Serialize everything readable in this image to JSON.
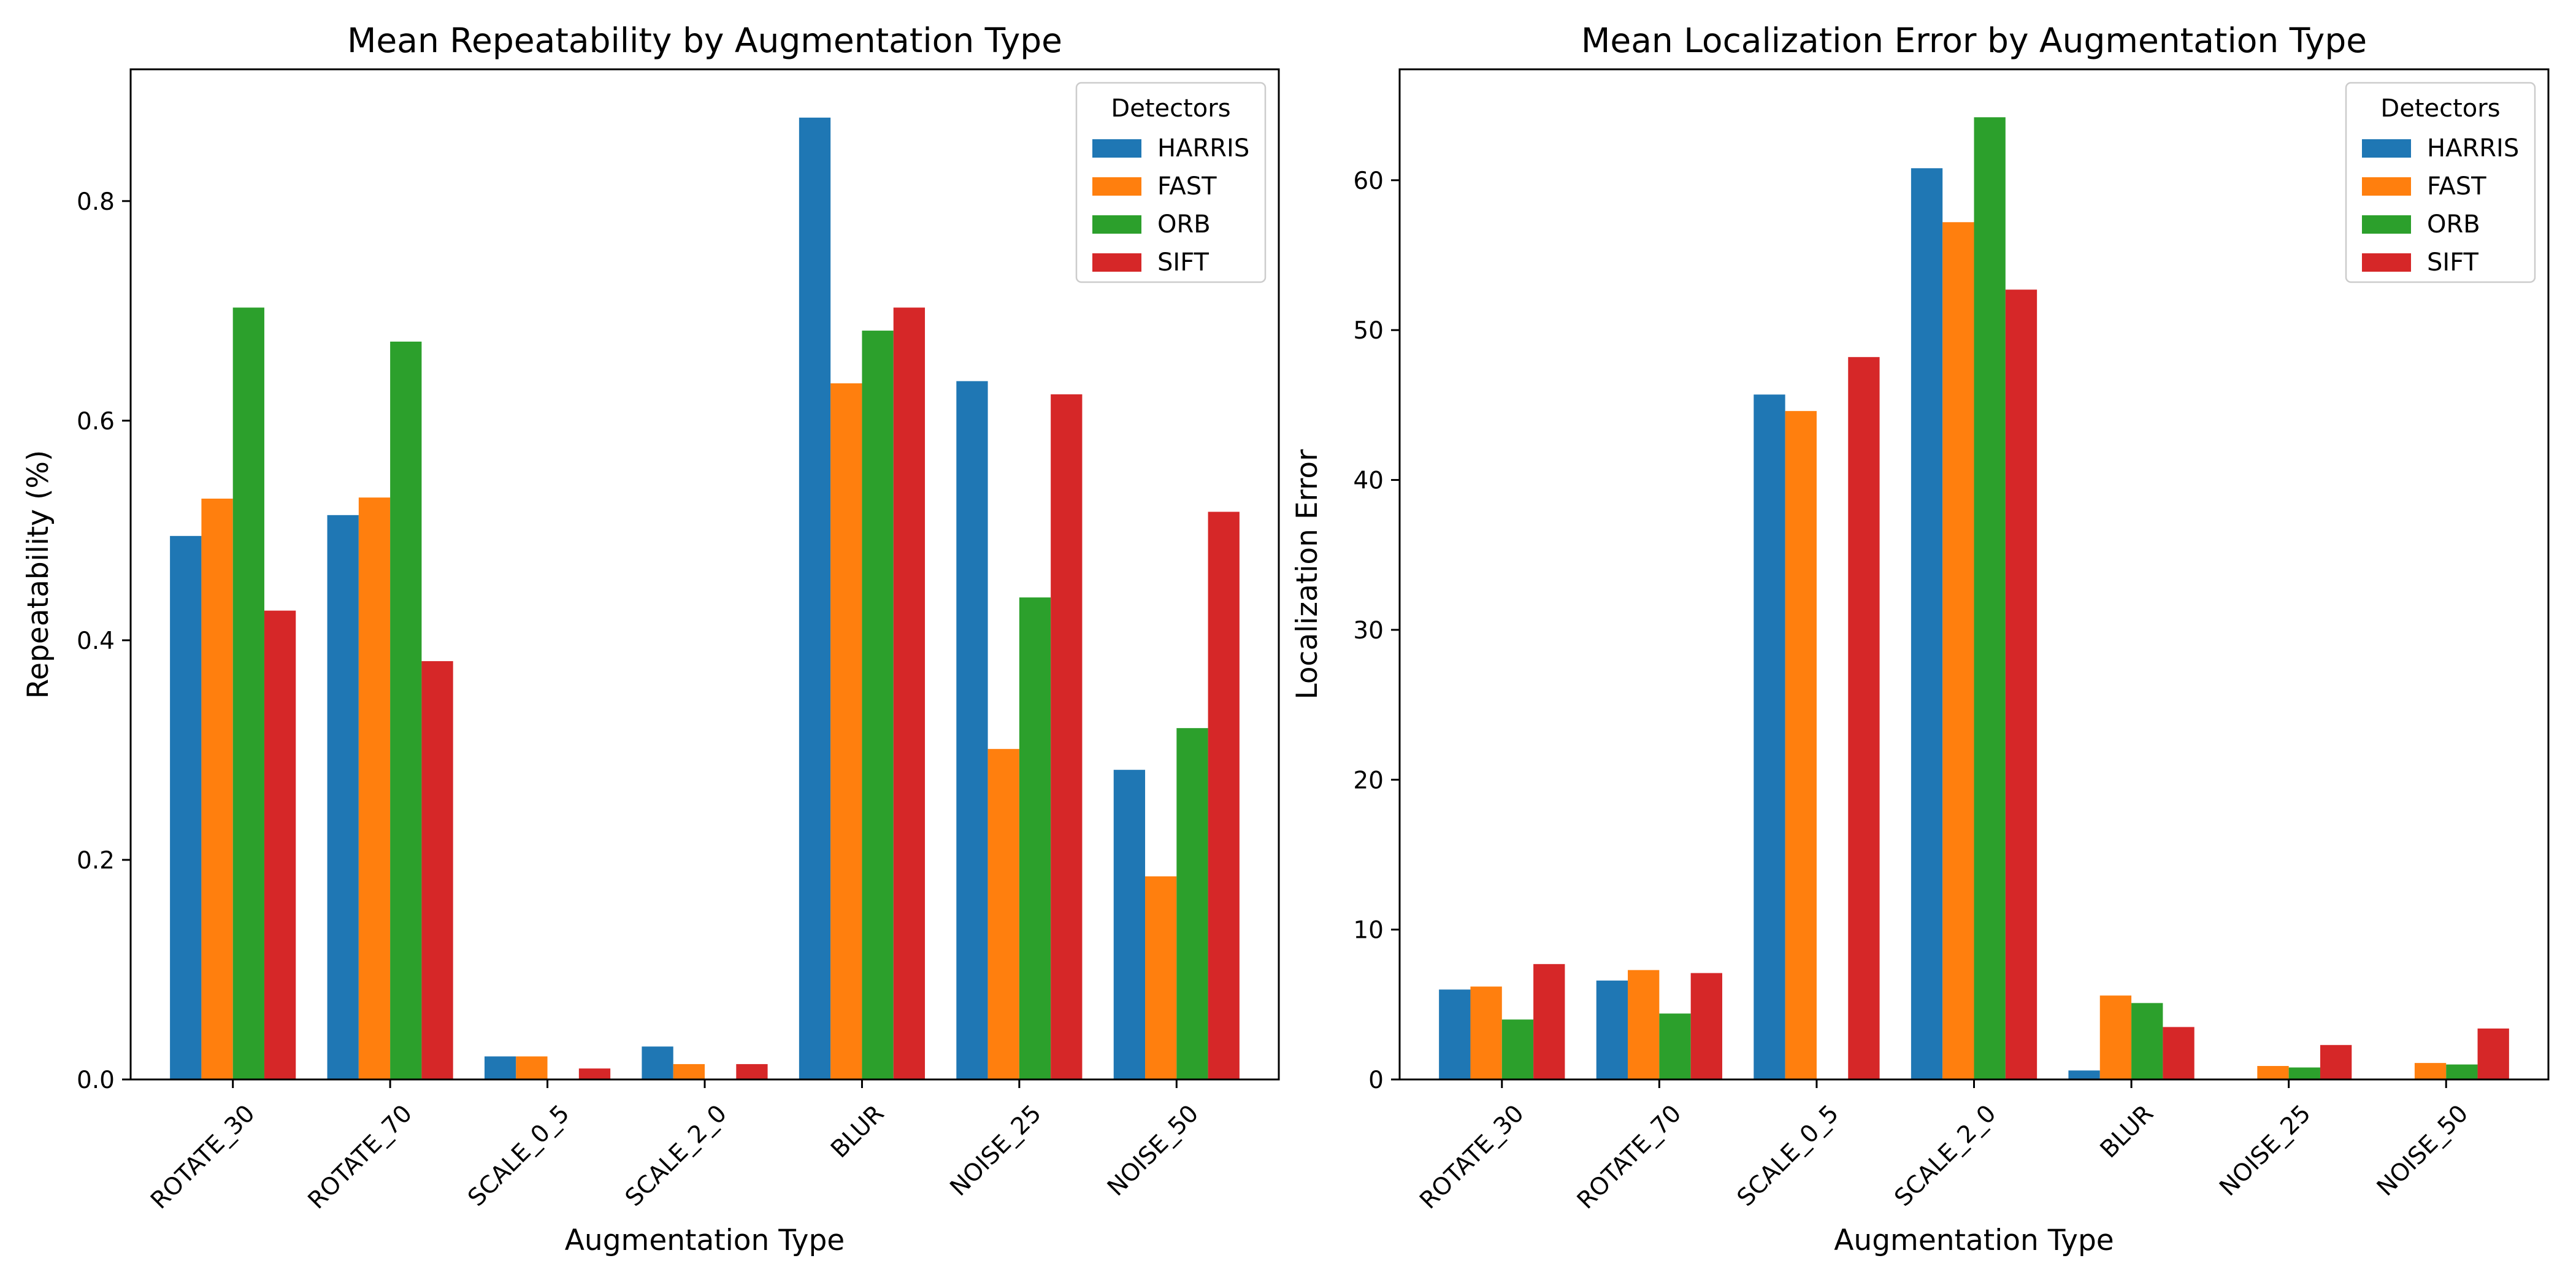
{
  "chart_data": [
    {
      "type": "bar",
      "title": "Mean Repeatability by Augmentation Type",
      "xlabel": "Augmentation Type",
      "ylabel": "Repeatability (%)",
      "ylim": [
        0,
        0.92
      ],
      "yticks": [
        0.0,
        0.2,
        0.4,
        0.6,
        0.8
      ],
      "ytick_labels": [
        "0.0",
        "0.2",
        "0.4",
        "0.6",
        "0.8"
      ],
      "grid": false,
      "legend": {
        "title": "Detectors",
        "placement": "top-right"
      },
      "categories": [
        "ROTATE_30",
        "ROTATE_70",
        "SCALE_0_5",
        "SCALE_2_0",
        "BLUR",
        "NOISE_25",
        "NOISE_50"
      ],
      "series": [
        {
          "name": "HARRIS",
          "color": "#1f77b4",
          "values": [
            0.495,
            0.514,
            0.021,
            0.03,
            0.876,
            0.636,
            0.282
          ]
        },
        {
          "name": "FAST",
          "color": "#ff7f0e",
          "values": [
            0.529,
            0.53,
            0.021,
            0.014,
            0.634,
            0.301,
            0.185
          ]
        },
        {
          "name": "ORB",
          "color": "#2ca02c",
          "values": [
            0.703,
            0.672,
            0.0,
            0.0,
            0.682,
            0.439,
            0.32
          ]
        },
        {
          "name": "SIFT",
          "color": "#d62728",
          "values": [
            0.427,
            0.381,
            0.01,
            0.014,
            0.703,
            0.624,
            0.517
          ]
        }
      ]
    },
    {
      "type": "bar",
      "title": "Mean Localization Error by Augmentation Type",
      "xlabel": "Augmentation Type",
      "ylabel": "Localization Error",
      "ylim": [
        0,
        67.4
      ],
      "yticks": [
        0,
        10,
        20,
        30,
        40,
        50,
        60
      ],
      "ytick_labels": [
        "0",
        "10",
        "20",
        "30",
        "40",
        "50",
        "60"
      ],
      "grid": false,
      "legend": {
        "title": "Detectors",
        "placement": "top-right"
      },
      "categories": [
        "ROTATE_30",
        "ROTATE_70",
        "SCALE_0_5",
        "SCALE_2_0",
        "BLUR",
        "NOISE_25",
        "NOISE_50"
      ],
      "series": [
        {
          "name": "HARRIS",
          "color": "#1f77b4",
          "values": [
            6.0,
            6.6,
            45.7,
            60.8,
            0.6,
            0.0,
            0.0
          ]
        },
        {
          "name": "FAST",
          "color": "#ff7f0e",
          "values": [
            6.2,
            7.3,
            44.6,
            57.2,
            5.6,
            0.9,
            1.1
          ]
        },
        {
          "name": "ORB",
          "color": "#2ca02c",
          "values": [
            4.0,
            4.4,
            0.0,
            64.2,
            5.1,
            0.8,
            1.0
          ]
        },
        {
          "name": "SIFT",
          "color": "#d62728",
          "values": [
            7.7,
            7.1,
            48.2,
            52.7,
            3.5,
            2.3,
            3.4
          ]
        }
      ]
    }
  ]
}
